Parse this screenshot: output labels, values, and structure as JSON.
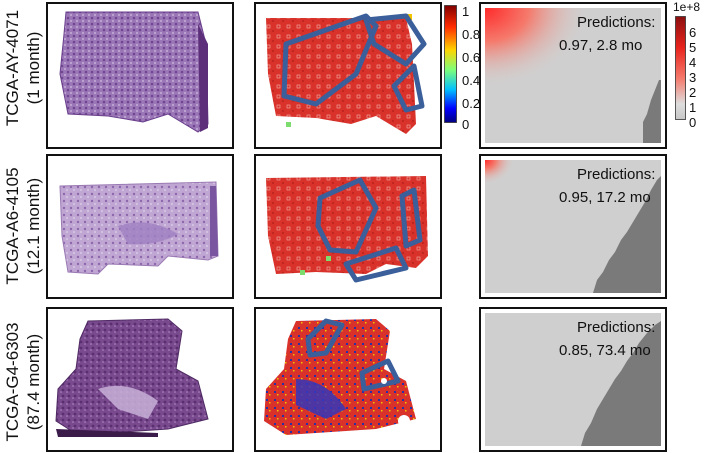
{
  "rows": [
    {
      "case_id": "TCGA-AY-4071",
      "survival": "(1 month)",
      "prediction_label": "Predictions:",
      "prediction_value": "0.97, 2.8 mo"
    },
    {
      "case_id": "TCGA-A6-4105",
      "survival": "(12.1 month)",
      "prediction_label": "Predictions:",
      "prediction_value": "0.95, 17.2 mo"
    },
    {
      "case_id": "TCGA-G4-6303",
      "survival": "(87.4 month)",
      "prediction_label": "Predictions:",
      "prediction_value": "0.85, 73.4 mo"
    }
  ],
  "attention_colorbar": {
    "ticks": [
      "1",
      "0.8",
      "0.6",
      "0.4",
      "0.2",
      "0"
    ],
    "colors": [
      "#7f0000",
      "#ff2a00",
      "#ffd400",
      "#7dff7a",
      "#00bfff",
      "#0000ff",
      "#00007f"
    ]
  },
  "survival_colorbar": {
    "exponent": "1e+8",
    "ticks": [
      "6",
      "5",
      "4",
      "3",
      "2",
      "1",
      "0"
    ],
    "colors": [
      "#8b1010",
      "#e8231d",
      "#f57a6c",
      "#dddddd",
      "#c8c8c8"
    ]
  },
  "colors": {
    "annotation_outline": "#3a5f9a",
    "heatmap_red": "#d8322b",
    "tissue_purple": "#8a5ea6",
    "map_light": "#c9c9c9",
    "map_dark": "#7a7a7a"
  }
}
